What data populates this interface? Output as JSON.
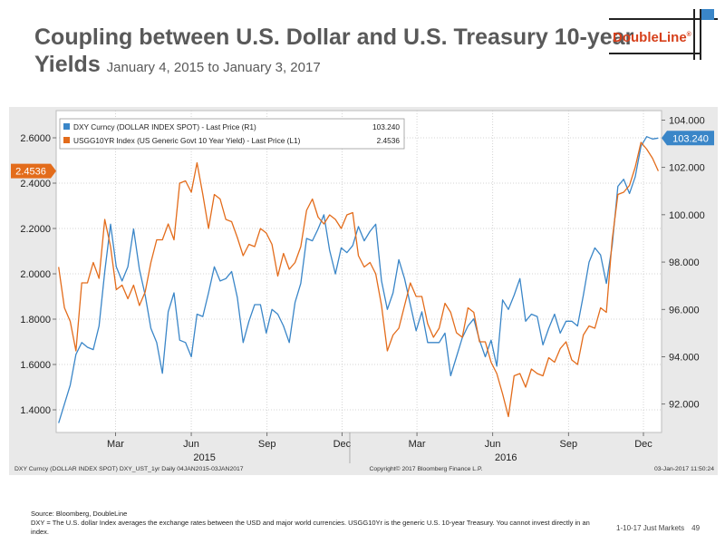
{
  "title": {
    "line1": "Coupling between U.S. Dollar and U.S. Treasury 10-year",
    "line2": "Yields",
    "subtitle": "January 4, 2015 to January 3, 2017"
  },
  "logo": {
    "text": "DoubleLine",
    "reg": "®",
    "color": "#d6401b"
  },
  "footer": {
    "source": "Source: Bloomberg, DoubleLine",
    "note": "DXY = The U.S. dollar Index averages the exchange rates between the USD and major world currencies. USGG10Yr is the generic U.S. 10-year Treasury. You cannot invest directly in an index.",
    "date_ref": "1-10-17 Just Markets",
    "page": "49"
  },
  "chart_data": {
    "type": "line",
    "legend_position": "top-left",
    "grid": true,
    "background": "#ffffff",
    "series": [
      {
        "name": "DXY Curncy (DOLLAR INDEX SPOT) - Last Price (R1)",
        "axis": "right",
        "color": "#3a86c8",
        "last_value": "103.240",
        "x": [
          "2015-01-05",
          "2015-01-12",
          "2015-01-19",
          "2015-01-26",
          "2015-02-02",
          "2015-02-09",
          "2015-02-16",
          "2015-02-23",
          "2015-03-02",
          "2015-03-09",
          "2015-03-16",
          "2015-03-23",
          "2015-03-30",
          "2015-04-06",
          "2015-04-13",
          "2015-04-20",
          "2015-04-27",
          "2015-05-04",
          "2015-05-11",
          "2015-05-18",
          "2015-05-25",
          "2015-06-01",
          "2015-06-08",
          "2015-06-15",
          "2015-06-22",
          "2015-06-29",
          "2015-07-06",
          "2015-07-13",
          "2015-07-20",
          "2015-07-27",
          "2015-08-03",
          "2015-08-10",
          "2015-08-17",
          "2015-08-24",
          "2015-08-31",
          "2015-09-07",
          "2015-09-14",
          "2015-09-21",
          "2015-09-28",
          "2015-10-05",
          "2015-10-12",
          "2015-10-19",
          "2015-10-26",
          "2015-11-02",
          "2015-11-09",
          "2015-11-16",
          "2015-11-23",
          "2015-11-30",
          "2015-12-07",
          "2015-12-14",
          "2015-12-21",
          "2015-12-28",
          "2016-01-04",
          "2016-01-11",
          "2016-01-18",
          "2016-01-25",
          "2016-02-01",
          "2016-02-08",
          "2016-02-15",
          "2016-02-22",
          "2016-02-29",
          "2016-03-07",
          "2016-03-14",
          "2016-03-21",
          "2016-03-28",
          "2016-04-04",
          "2016-04-11",
          "2016-04-18",
          "2016-04-25",
          "2016-05-02",
          "2016-05-09",
          "2016-05-16",
          "2016-05-23",
          "2016-05-30",
          "2016-06-06",
          "2016-06-13",
          "2016-06-20",
          "2016-06-27",
          "2016-07-04",
          "2016-07-11",
          "2016-07-18",
          "2016-07-25",
          "2016-08-01",
          "2016-08-08",
          "2016-08-15",
          "2016-08-22",
          "2016-08-29",
          "2016-09-05",
          "2016-09-12",
          "2016-09-19",
          "2016-09-26",
          "2016-10-03",
          "2016-10-10",
          "2016-10-17",
          "2016-10-24",
          "2016-10-31",
          "2016-11-07",
          "2016-11-14",
          "2016-11-21",
          "2016-11-28",
          "2016-12-05",
          "2016-12-12",
          "2016-12-19",
          "2016-12-26",
          "2017-01-02"
        ],
        "values": [
          91.2,
          92.0,
          92.8,
          94.1,
          94.6,
          94.4,
          94.3,
          95.3,
          97.6,
          99.6,
          97.8,
          97.2,
          97.8,
          99.4,
          97.7,
          96.6,
          95.2,
          94.6,
          93.3,
          95.9,
          96.7,
          94.7,
          94.6,
          94.0,
          95.8,
          95.7,
          96.7,
          97.8,
          97.2,
          97.3,
          97.6,
          96.5,
          94.6,
          95.5,
          96.2,
          96.2,
          95.0,
          96.0,
          95.8,
          95.3,
          94.6,
          96.3,
          97.1,
          99.0,
          98.9,
          99.4,
          100.0,
          98.5,
          97.5,
          98.6,
          98.4,
          98.7,
          99.5,
          98.9,
          99.3,
          99.6,
          97.2,
          96.0,
          96.7,
          98.1,
          97.3,
          96.2,
          95.1,
          95.9,
          94.6,
          94.6,
          94.6,
          95.0,
          93.2,
          94.0,
          94.8,
          95.3,
          95.6,
          94.7,
          94.0,
          94.7,
          93.6,
          96.4,
          96.0,
          96.6,
          97.3,
          95.5,
          95.8,
          95.7,
          94.5,
          95.2,
          95.8,
          95.0,
          95.5,
          95.5,
          95.3,
          96.6,
          98.0,
          98.6,
          98.3,
          97.1,
          98.7,
          101.2,
          101.5,
          100.9,
          101.6,
          102.9,
          103.3,
          103.2,
          103.24
        ]
      },
      {
        "name": "USGG10YR Index (US Generic Govt 10 Year Yield) - Last Price (L1)",
        "axis": "left",
        "color": "#e36c1b",
        "last_value": "2.4536",
        "x": [
          "2015-01-05",
          "2015-01-12",
          "2015-01-19",
          "2015-01-26",
          "2015-02-02",
          "2015-02-09",
          "2015-02-16",
          "2015-02-23",
          "2015-03-02",
          "2015-03-09",
          "2015-03-16",
          "2015-03-23",
          "2015-03-30",
          "2015-04-06",
          "2015-04-13",
          "2015-04-20",
          "2015-04-27",
          "2015-05-04",
          "2015-05-11",
          "2015-05-18",
          "2015-05-25",
          "2015-06-01",
          "2015-06-08",
          "2015-06-15",
          "2015-06-22",
          "2015-06-29",
          "2015-07-06",
          "2015-07-13",
          "2015-07-20",
          "2015-07-27",
          "2015-08-03",
          "2015-08-10",
          "2015-08-17",
          "2015-08-24",
          "2015-08-31",
          "2015-09-07",
          "2015-09-14",
          "2015-09-21",
          "2015-09-28",
          "2015-10-05",
          "2015-10-12",
          "2015-10-19",
          "2015-10-26",
          "2015-11-02",
          "2015-11-09",
          "2015-11-16",
          "2015-11-23",
          "2015-11-30",
          "2015-12-07",
          "2015-12-14",
          "2015-12-21",
          "2015-12-28",
          "2016-01-04",
          "2016-01-11",
          "2016-01-18",
          "2016-01-25",
          "2016-02-01",
          "2016-02-08",
          "2016-02-15",
          "2016-02-22",
          "2016-02-29",
          "2016-03-07",
          "2016-03-14",
          "2016-03-21",
          "2016-03-28",
          "2016-04-04",
          "2016-04-11",
          "2016-04-18",
          "2016-04-25",
          "2016-05-02",
          "2016-05-09",
          "2016-05-16",
          "2016-05-23",
          "2016-05-30",
          "2016-06-06",
          "2016-06-13",
          "2016-06-20",
          "2016-06-27",
          "2016-07-04",
          "2016-07-11",
          "2016-07-18",
          "2016-07-25",
          "2016-08-01",
          "2016-08-08",
          "2016-08-15",
          "2016-08-22",
          "2016-08-29",
          "2016-09-05",
          "2016-09-12",
          "2016-09-19",
          "2016-09-26",
          "2016-10-03",
          "2016-10-10",
          "2016-10-17",
          "2016-10-24",
          "2016-10-31",
          "2016-11-07",
          "2016-11-14",
          "2016-11-21",
          "2016-11-28",
          "2016-12-05",
          "2016-12-12",
          "2016-12-19",
          "2016-12-26",
          "2017-01-02"
        ],
        "values": [
          2.03,
          1.85,
          1.79,
          1.66,
          1.96,
          1.96,
          2.05,
          1.98,
          2.24,
          2.12,
          1.93,
          1.95,
          1.89,
          1.95,
          1.86,
          1.92,
          2.05,
          2.15,
          2.15,
          2.22,
          2.15,
          2.4,
          2.41,
          2.36,
          2.49,
          2.35,
          2.2,
          2.35,
          2.33,
          2.24,
          2.23,
          2.16,
          2.08,
          2.13,
          2.12,
          2.2,
          2.18,
          2.13,
          1.99,
          2.09,
          2.02,
          2.05,
          2.12,
          2.28,
          2.33,
          2.25,
          2.22,
          2.26,
          2.24,
          2.2,
          2.26,
          2.27,
          2.08,
          2.03,
          2.05,
          2.0,
          1.86,
          1.66,
          1.73,
          1.76,
          1.86,
          1.96,
          1.9,
          1.9,
          1.78,
          1.72,
          1.76,
          1.87,
          1.83,
          1.74,
          1.72,
          1.85,
          1.83,
          1.7,
          1.7,
          1.61,
          1.56,
          1.47,
          1.37,
          1.55,
          1.56,
          1.5,
          1.58,
          1.56,
          1.55,
          1.63,
          1.61,
          1.67,
          1.7,
          1.62,
          1.6,
          1.73,
          1.77,
          1.76,
          1.85,
          1.83,
          2.15,
          2.35,
          2.36,
          2.39,
          2.47,
          2.58,
          2.55,
          2.51,
          2.4536
        ]
      }
    ],
    "left_axis": {
      "min": 1.3,
      "max": 2.72,
      "ticks": [
        "1.4000",
        "1.6000",
        "1.8000",
        "2.0000",
        "2.2000",
        "2.4000",
        "2.6000"
      ]
    },
    "right_axis": {
      "min": 90.8,
      "max": 104.4,
      "ticks": [
        "92.000",
        "94.000",
        "96.000",
        "98.000",
        "100.000",
        "102.000",
        "104.000"
      ]
    },
    "x_axis": {
      "start": "2015-01-02",
      "end": "2017-01-06",
      "months": [
        {
          "label": "Mar",
          "date": "2015-03-15"
        },
        {
          "label": "Jun",
          "date": "2015-06-15"
        },
        {
          "label": "Sep",
          "date": "2015-09-15"
        },
        {
          "label": "Dec",
          "date": "2015-12-15"
        },
        {
          "label": "Mar",
          "date": "2016-03-15"
        },
        {
          "label": "Jun",
          "date": "2016-06-15"
        },
        {
          "label": "Sep",
          "date": "2016-09-15"
        },
        {
          "label": "Dec",
          "date": "2016-12-15"
        }
      ],
      "years": [
        {
          "label": "2015",
          "date": "2015-07-01"
        },
        {
          "label": "2016",
          "date": "2016-07-01"
        }
      ]
    },
    "legend": [
      {
        "text": "DXY Curncy (DOLLAR INDEX SPOT) - Last Price (R1)",
        "value": "103.240",
        "color": "#3a86c8"
      },
      {
        "text": "USGG10YR Index (US Generic Govt 10 Year Yield) - Last Price (L1)",
        "value": "2.4536",
        "color": "#e36c1b"
      }
    ],
    "bottom_strip": {
      "left": "DXY Curncy (DOLLAR INDEX SPOT) DXY_UST_1yr  Daily 04JAN2015-03JAN2017",
      "center": "Copyright© 2017 Bloomberg Finance L.P.",
      "right": "03-Jan-2017 11:50:24"
    }
  }
}
